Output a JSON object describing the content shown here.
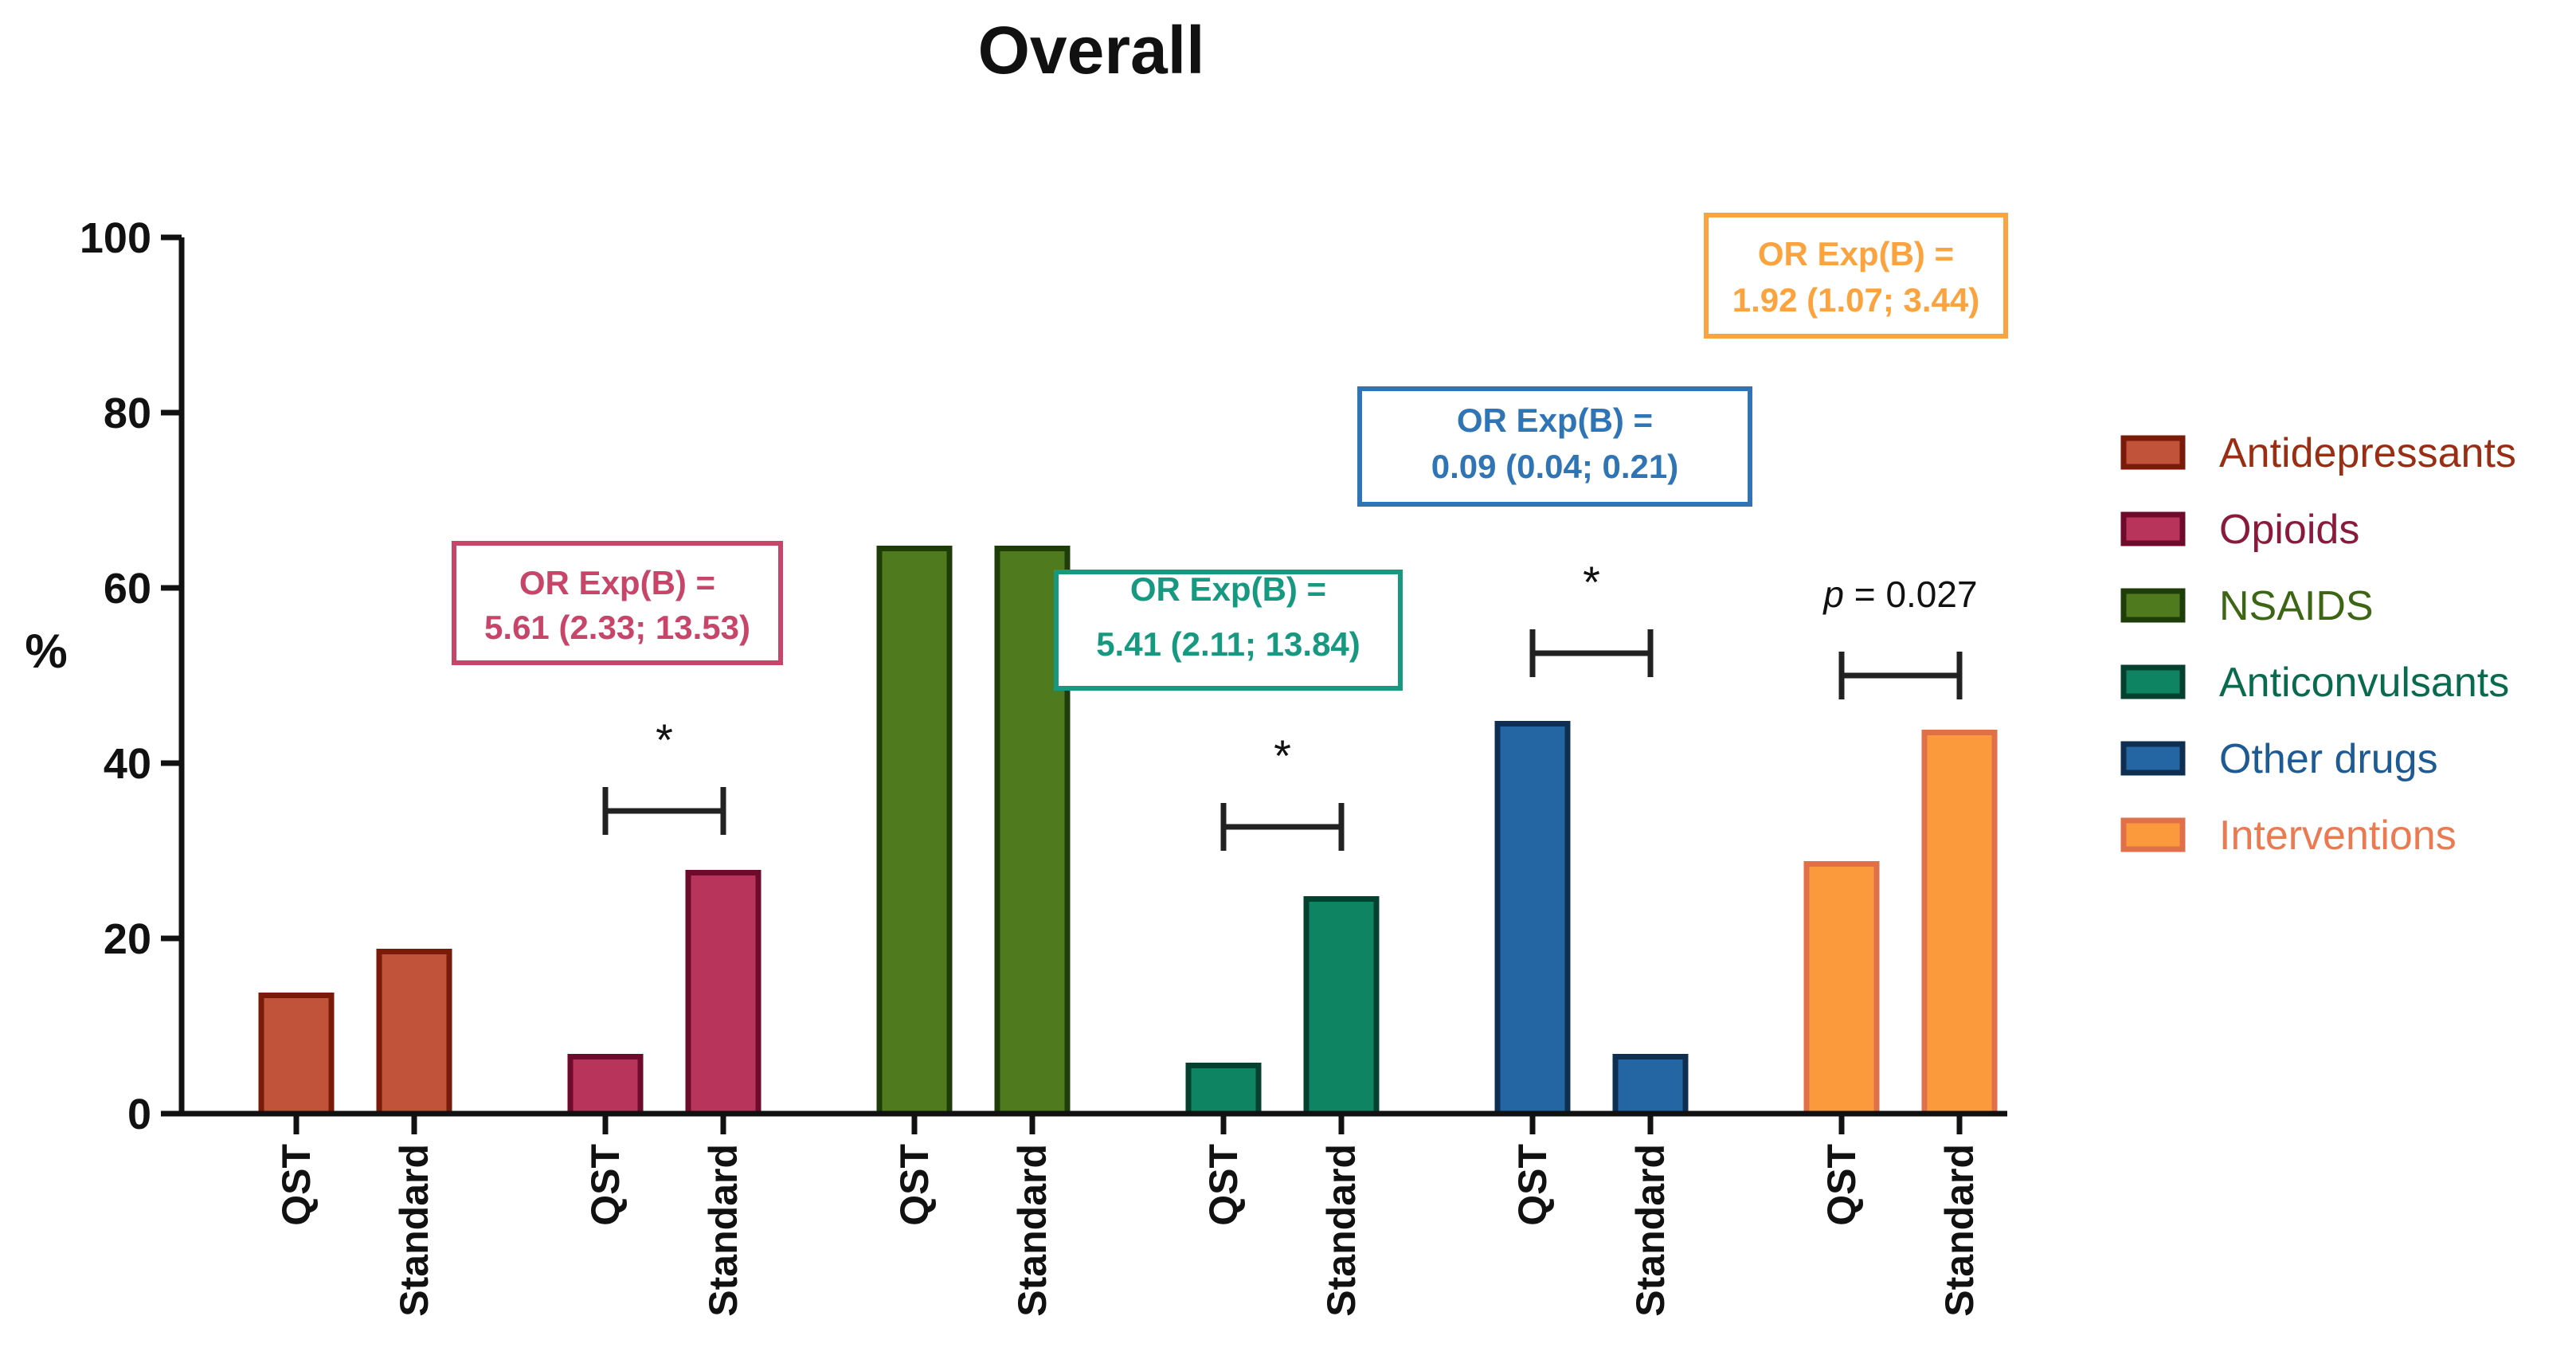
{
  "chart_data": {
    "type": "bar",
    "title": "Overall",
    "xlabel": "",
    "ylabel": "%",
    "ylim": [
      0,
      100
    ],
    "yticks": [
      0,
      20,
      40,
      60,
      80,
      100
    ],
    "legend_position": "right",
    "groups": [
      {
        "name": "Antidepressants",
        "categories": [
          "QST",
          "Standard"
        ],
        "values": [
          13.5,
          18.5
        ],
        "fill": "#c0533a",
        "stroke": "#7a1a08",
        "legend_text_color": "#9a2e14"
      },
      {
        "name": "Opioids",
        "categories": [
          "QST",
          "Standard"
        ],
        "values": [
          6.5,
          27.5
        ],
        "fill": "#b8345a",
        "stroke": "#6e0a2c",
        "legend_text_color": "#8a1a3c"
      },
      {
        "name": "NSAIDS",
        "categories": [
          "QST",
          "Standard"
        ],
        "values": [
          64.5,
          64.5
        ],
        "fill": "#4f7a1e",
        "stroke": "#1f3d08",
        "legend_text_color": "#3d6614"
      },
      {
        "name": "Anticonvulsants",
        "categories": [
          "QST",
          "Standard"
        ],
        "values": [
          5.5,
          24.5
        ],
        "fill": "#0e8463",
        "stroke": "#06402e",
        "legend_text_color": "#0a6a4e"
      },
      {
        "name": "Other drugs",
        "categories": [
          "QST",
          "Standard"
        ],
        "values": [
          44.5,
          6.5
        ],
        "fill": "#2466a3",
        "stroke": "#0e2f52",
        "legend_text_color": "#1e5a94"
      },
      {
        "name": "Interventions",
        "categories": [
          "QST",
          "Standard"
        ],
        "values": [
          28.5,
          43.5
        ],
        "fill": "#fb9a3c",
        "stroke": "#e0704a",
        "legend_text_color": "#ea7a52"
      }
    ],
    "annotations": [
      {
        "group": 1,
        "lines": [
          "OR Exp(B) =",
          "5.61 (2.33; 13.53)"
        ],
        "color": "#c8456a"
      },
      {
        "group": 3,
        "lines": [
          "OR Exp(B) =",
          "5.41  (2.11; 13.84)"
        ],
        "color": "#179880"
      },
      {
        "group": 4,
        "lines": [
          "OR Exp(B) =",
          "0.09 (0.04; 0.21)"
        ],
        "color": "#2f74b5"
      },
      {
        "group": 5,
        "lines": [
          "OR Exp(B) =",
          "1.92 (1.07; 3.44)"
        ],
        "color": "#fba33e"
      }
    ],
    "significance": [
      {
        "group": 1,
        "label": "*"
      },
      {
        "group": 3,
        "label": "*"
      },
      {
        "group": 4,
        "label": "*"
      },
      {
        "group": 5,
        "label_italic": "p",
        "label_rest": " = 0.027"
      }
    ]
  }
}
